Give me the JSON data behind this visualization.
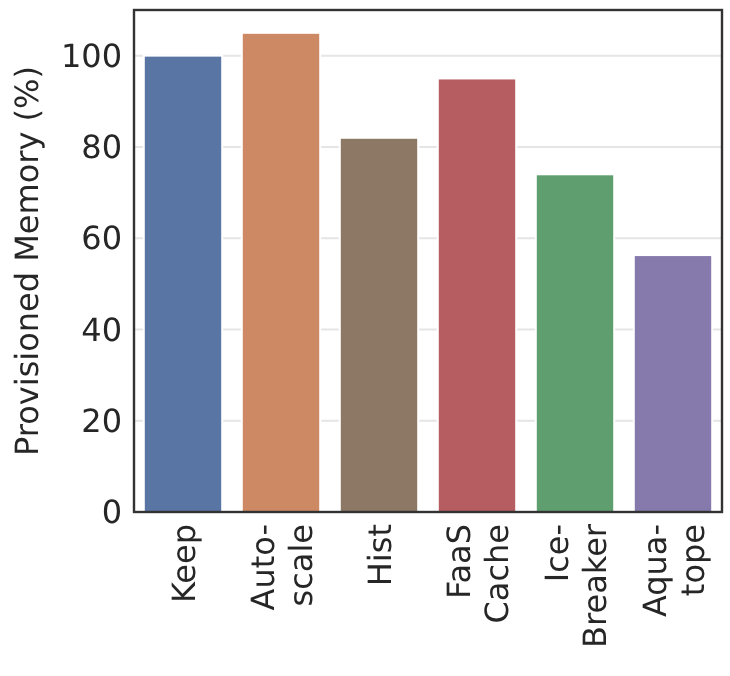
{
  "chart_data": {
    "type": "bar",
    "ylabel": "Provisioned Memory (%)",
    "categories": [
      "Keep",
      "Auto-\nscale",
      "Hist",
      "FaaS\nCache",
      "Ice-\nBreaker",
      "Aqua-\ntope"
    ],
    "values": [
      100,
      105,
      82,
      95,
      74,
      56.3
    ],
    "colors": [
      "#5975a4",
      "#cc8963",
      "#8c7864",
      "#b55d60",
      "#5f9e6e",
      "#857aab"
    ],
    "ylim": [
      0,
      110
    ],
    "yticks": [
      0,
      20,
      40,
      60,
      80,
      100
    ],
    "grid": "y"
  }
}
